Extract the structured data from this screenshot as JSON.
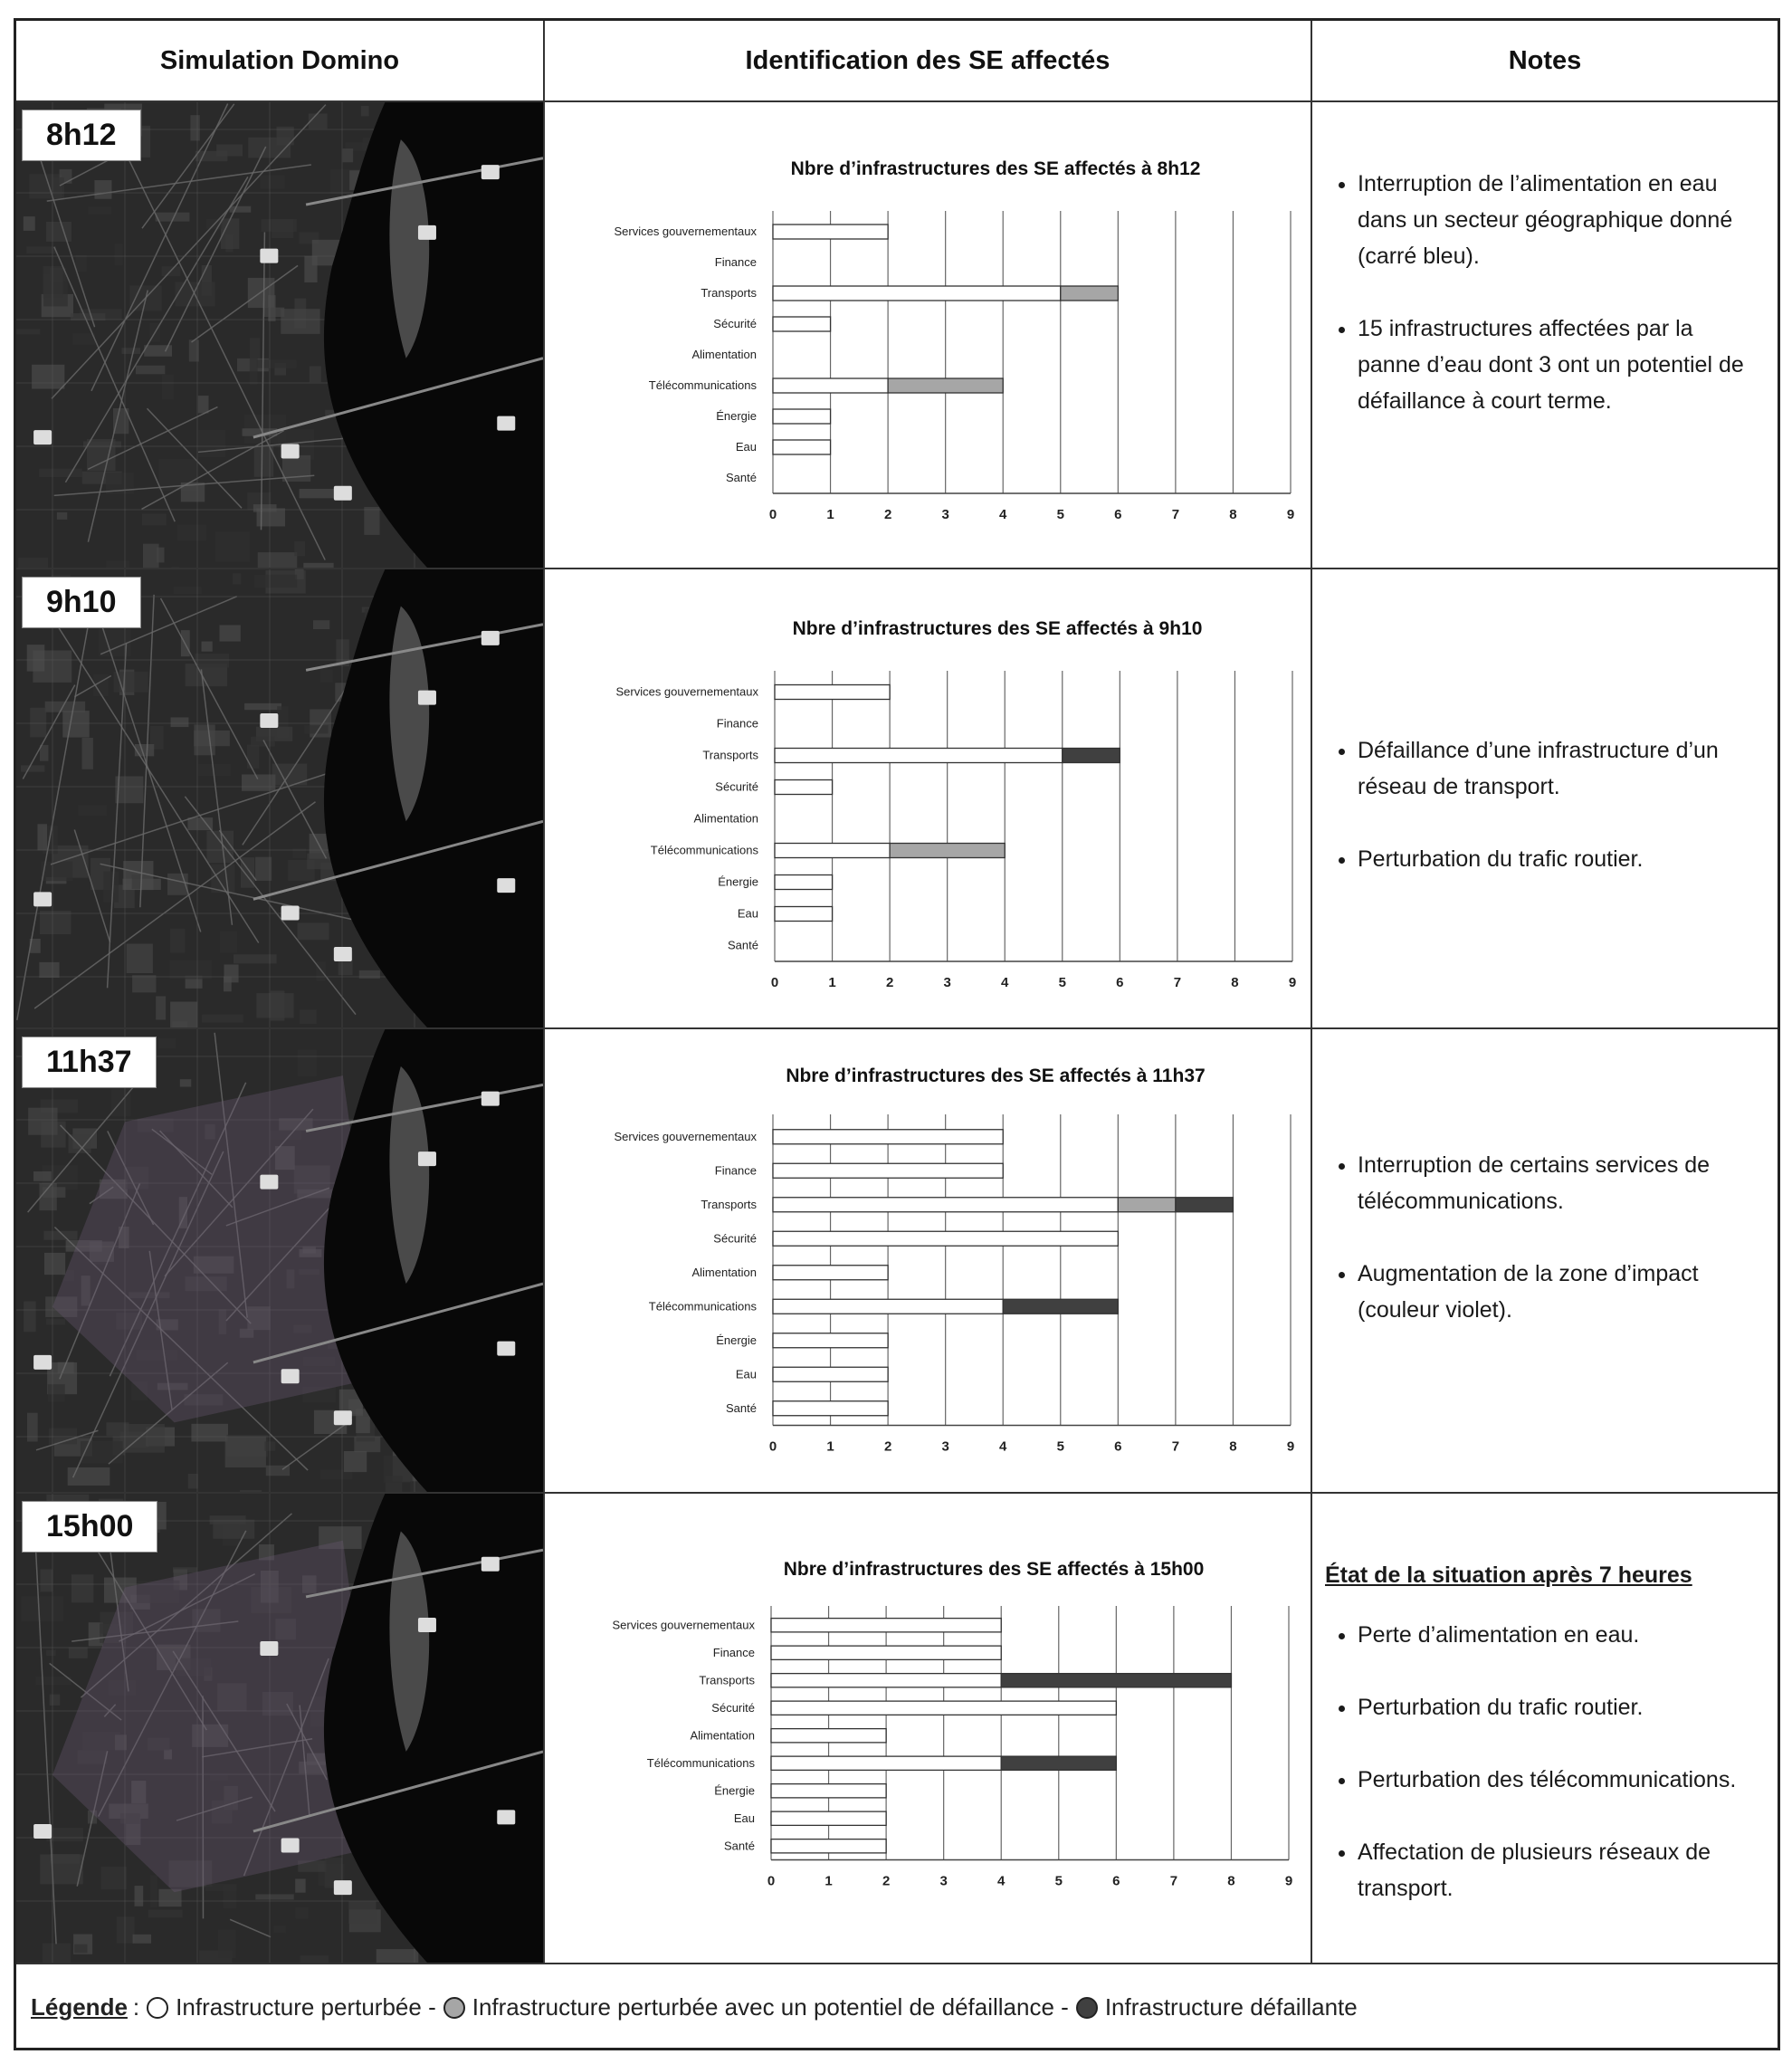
{
  "header": {
    "col1": "Simulation Domino",
    "col2": "Identification des SE affectés",
    "col3": "Notes"
  },
  "colors": {
    "perturbed": "#ffffff",
    "potential": "#a6a6a6",
    "failed": "#404040"
  },
  "categories": [
    "Services gouvernementaux",
    "Finance",
    "Transports",
    "Sécurité",
    "Alimentation",
    "Télécommunications",
    "Énergie",
    "Eau",
    "Santé"
  ],
  "rows": [
    {
      "time": "8h12",
      "notes_heading": "",
      "notes": [
        "Interruption de l’alimentation en eau dans un secteur géographique donné (carré bleu).",
        "15 infrastructures affectées par la panne d’eau dont 3 ont un potentiel de défaillance à court terme."
      ]
    },
    {
      "time": "9h10",
      "notes_heading": "",
      "notes": [
        "Défaillance d’une infrastructure d’un réseau de transport.",
        "Perturbation du trafic routier."
      ]
    },
    {
      "time": "11h37",
      "notes_heading": "",
      "notes": [
        "Interruption de certains services de télécommunications.",
        "Augmentation de la zone d’impact (couleur violet)."
      ]
    },
    {
      "time": "15h00",
      "notes_heading": "État de la situation après 7 heures",
      "notes": [
        "Perte d’alimentation en eau.",
        "Perturbation du trafic routier.",
        "Perturbation des télécommunications.",
        "Affectation de plusieurs réseaux de transport."
      ]
    }
  ],
  "chart_data": [
    {
      "type": "bar",
      "title": "Nbre d’infrastructures des SE affectés à 8h12",
      "categories": [
        "Services gouvernementaux",
        "Finance",
        "Transports",
        "Sécurité",
        "Alimentation",
        "Télécommunications",
        "Énergie",
        "Eau",
        "Santé"
      ],
      "series": [
        {
          "name": "Infrastructure perturbée",
          "values": [
            2,
            0,
            5,
            1,
            0,
            2,
            1,
            1,
            0
          ]
        },
        {
          "name": "Infrastructure perturbée avec un potentiel de défaillance",
          "values": [
            0,
            0,
            1,
            0,
            0,
            2,
            0,
            0,
            0
          ]
        },
        {
          "name": "Infrastructure défaillante",
          "values": [
            0,
            0,
            0,
            0,
            0,
            0,
            0,
            0,
            0
          ]
        }
      ],
      "xlim": [
        0,
        9
      ],
      "ticks": [
        "0",
        "1",
        "2",
        "3",
        "4",
        "5",
        "6",
        "7",
        "8",
        "9"
      ]
    },
    {
      "type": "bar",
      "title": "Nbre d’infrastructures des SE affectés à 9h10",
      "categories": [
        "Services gouvernementaux",
        "Finance",
        "Transports",
        "Sécurité",
        "Alimentation",
        "Télécommunications",
        "Énergie",
        "Eau",
        "Santé"
      ],
      "series": [
        {
          "name": "Infrastructure perturbée",
          "values": [
            2,
            0,
            5,
            1,
            0,
            2,
            1,
            1,
            0
          ]
        },
        {
          "name": "Infrastructure perturbée avec un potentiel de défaillance",
          "values": [
            0,
            0,
            0,
            0,
            0,
            2,
            0,
            0,
            0
          ]
        },
        {
          "name": "Infrastructure défaillante",
          "values": [
            0,
            0,
            1,
            0,
            0,
            0,
            0,
            0,
            0
          ]
        }
      ],
      "xlim": [
        0,
        9
      ],
      "ticks": [
        "0",
        "1",
        "2",
        "3",
        "4",
        "5",
        "6",
        "7",
        "8",
        "9"
      ]
    },
    {
      "type": "bar",
      "title": "Nbre d’infrastructures des SE affectés à 11h37",
      "categories": [
        "Services gouvernementaux",
        "Finance",
        "Transports",
        "Sécurité",
        "Alimentation",
        "Télécommunications",
        "Énergie",
        "Eau",
        "Santé"
      ],
      "series": [
        {
          "name": "Infrastructure perturbée",
          "values": [
            4,
            4,
            6,
            6,
            2,
            4,
            2,
            2,
            2
          ]
        },
        {
          "name": "Infrastructure perturbée avec un potentiel de défaillance",
          "values": [
            0,
            0,
            1,
            0,
            0,
            0,
            0,
            0,
            0
          ]
        },
        {
          "name": "Infrastructure défaillante",
          "values": [
            0,
            0,
            1,
            0,
            0,
            2,
            0,
            0,
            0
          ]
        }
      ],
      "xlim": [
        0,
        9
      ],
      "ticks": [
        "0",
        "1",
        "2",
        "3",
        "4",
        "5",
        "6",
        "7",
        "8",
        "9"
      ]
    },
    {
      "type": "bar",
      "title": "Nbre d’infrastructures des SE affectés à 15h00",
      "categories": [
        "Services gouvernementaux",
        "Finance",
        "Transports",
        "Sécurité",
        "Alimentation",
        "Télécommunications",
        "Énergie",
        "Eau",
        "Santé"
      ],
      "series": [
        {
          "name": "Infrastructure perturbée",
          "values": [
            4,
            4,
            4,
            6,
            2,
            4,
            2,
            2,
            2
          ]
        },
        {
          "name": "Infrastructure perturbée avec un potentiel de défaillance",
          "values": [
            0,
            0,
            0,
            0,
            0,
            0,
            0,
            0,
            0
          ]
        },
        {
          "name": "Infrastructure défaillante",
          "values": [
            0,
            0,
            4,
            0,
            0,
            2,
            0,
            0,
            0
          ]
        }
      ],
      "xlim": [
        0,
        9
      ],
      "ticks": [
        "0",
        "1",
        "2",
        "3",
        "4",
        "5",
        "6",
        "7",
        "8",
        "9"
      ]
    }
  ],
  "legend": {
    "title": "Légende",
    "sep": ":",
    "item1": "Infrastructure perturbée -",
    "item2": "Infrastructure perturbée avec un potentiel de défaillance -",
    "item3": "Infrastructure défaillante"
  }
}
